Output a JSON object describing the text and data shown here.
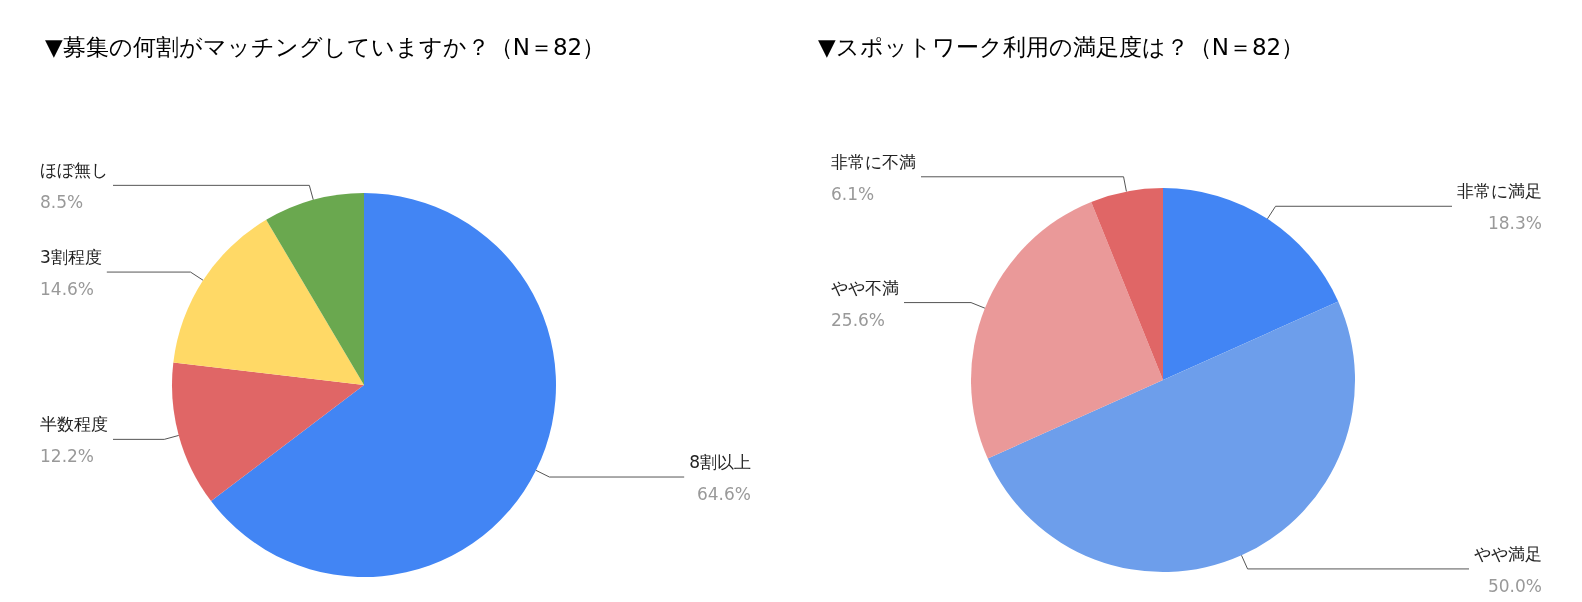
{
  "chart_data": [
    {
      "type": "pie",
      "title": "▼募集の何割がマッチングしていますか？（N＝82）",
      "categories": [
        "8割以上",
        "半数程度",
        "3割程度",
        "ほぼ無し"
      ],
      "values": [
        64.6,
        12.2,
        14.6,
        8.5
      ],
      "value_labels": [
        "64.6%",
        "12.2%",
        "14.6%",
        "8.5%"
      ],
      "colors": [
        "#4285f4",
        "#e06666",
        "#ffd966",
        "#6aa84f"
      ]
    },
    {
      "type": "pie",
      "title": "▼スポットワーク利用の満足度は？（N＝82）",
      "categories": [
        "非常に満足",
        "やや満足",
        "やや不満",
        "非常に不満"
      ],
      "values": [
        18.3,
        50.0,
        25.6,
        6.1
      ],
      "value_labels": [
        "18.3%",
        "50.0%",
        "25.6%",
        "6.1%"
      ],
      "colors": [
        "#4285f4",
        "#6d9eeb",
        "#ea9999",
        "#e06666"
      ]
    }
  ]
}
